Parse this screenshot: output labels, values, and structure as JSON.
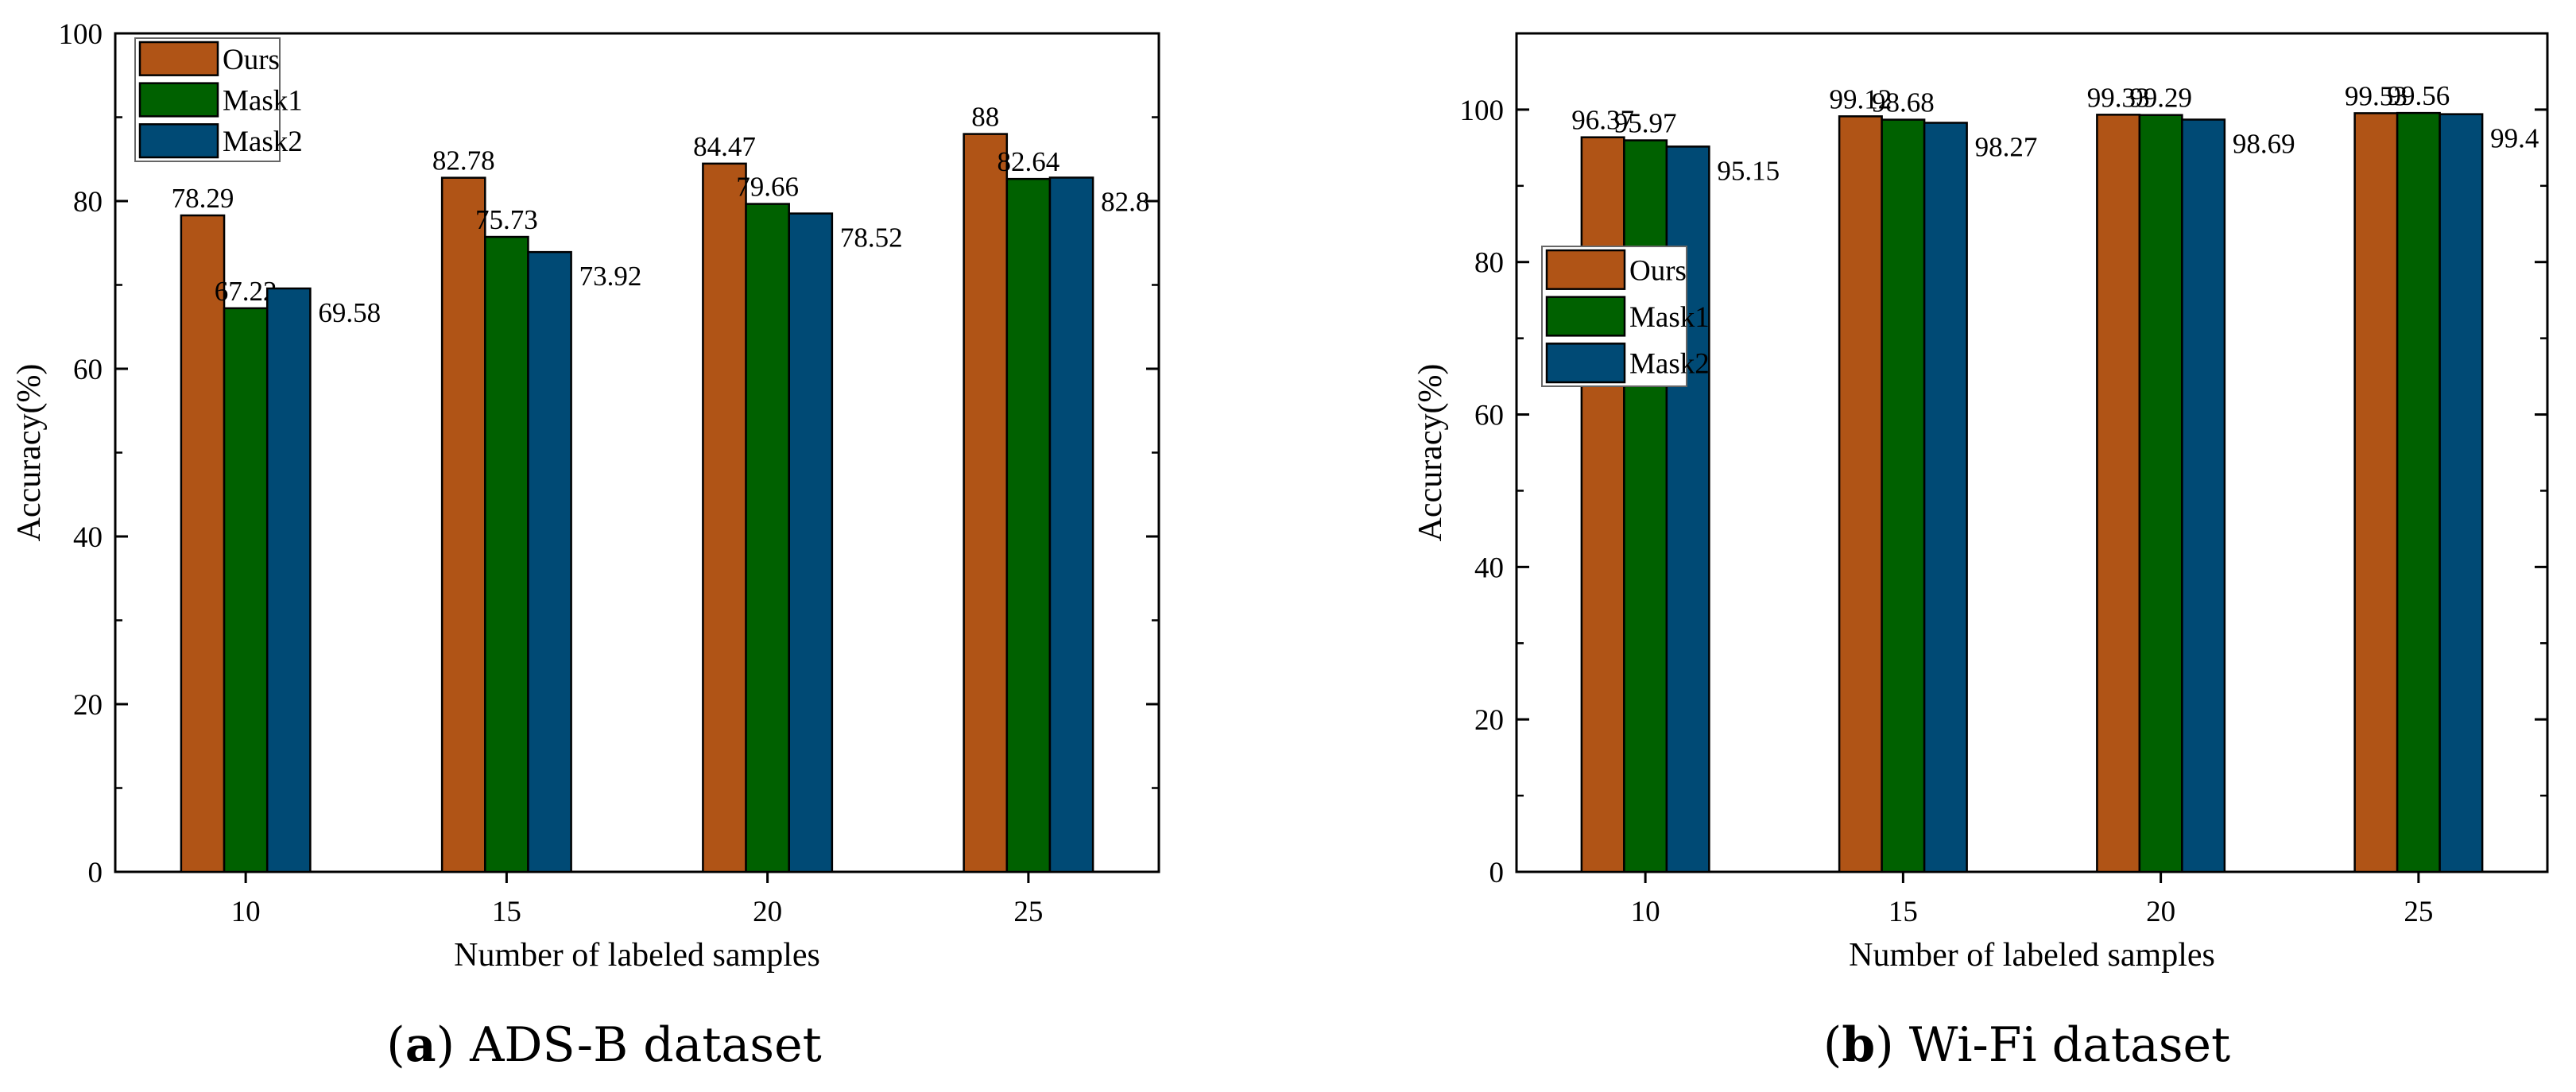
{
  "chart_data": [
    {
      "type": "bar",
      "panel_letter": "a",
      "caption": "ADS-B dataset",
      "xlabel": "Number of labeled samples",
      "ylabel": "Accuracy(%)",
      "categories": [
        "10",
        "15",
        "20",
        "25"
      ],
      "ylim": [
        0,
        100
      ],
      "yticks": [
        "0",
        "20",
        "40",
        "60",
        "80",
        "100"
      ],
      "legend_position": "top-left",
      "series": [
        {
          "name": "Ours",
          "color": "#B05416",
          "values": [
            78.29,
            82.78,
            84.47,
            88
          ],
          "labels": [
            "78.29",
            "82.78",
            "84.47",
            "88"
          ]
        },
        {
          "name": "Mask1",
          "color": "#006100",
          "values": [
            67.22,
            75.73,
            79.66,
            82.64
          ],
          "labels": [
            "67.22",
            "75.73",
            "79.66",
            "82.64"
          ]
        },
        {
          "name": "Mask2",
          "color": "#004A75",
          "values": [
            69.58,
            73.92,
            78.52,
            82.8
          ],
          "labels": [
            "69.58",
            "73.92",
            "78.52",
            "82.8"
          ]
        }
      ]
    },
    {
      "type": "bar",
      "panel_letter": "b",
      "caption": "Wi-Fi dataset",
      "xlabel": "Number of labeled samples",
      "ylabel": "Accuracy(%)",
      "categories": [
        "10",
        "15",
        "20",
        "25"
      ],
      "ylim": [
        0,
        110
      ],
      "yticks": [
        "0",
        "20",
        "40",
        "60",
        "80",
        "100"
      ],
      "legend_position": "center-left",
      "series": [
        {
          "name": "Ours",
          "color": "#B05416",
          "values": [
            96.37,
            99.12,
            99.33,
            99.53
          ],
          "labels": [
            "96.37",
            "99.12",
            "99.33",
            "99.53"
          ]
        },
        {
          "name": "Mask1",
          "color": "#006100",
          "values": [
            95.97,
            98.68,
            99.29,
            99.56
          ],
          "labels": [
            "95.97",
            "98.68",
            "99.29",
            "99.56"
          ]
        },
        {
          "name": "Mask2",
          "color": "#004A75",
          "values": [
            95.15,
            98.27,
            98.69,
            99.4
          ],
          "labels": [
            "95.15",
            "98.27",
            "98.69",
            "99.4"
          ]
        }
      ]
    }
  ]
}
